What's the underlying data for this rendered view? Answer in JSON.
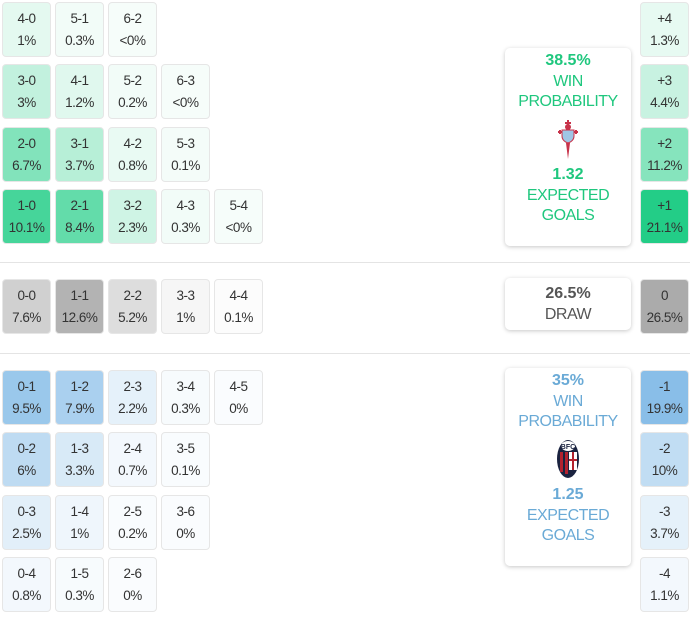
{
  "home": {
    "win_probability": "38.5%",
    "win_label_1": "WIN",
    "win_label_2": "PROBABILITY",
    "expected_goals": "1.32",
    "xg_label_1": "EXPECTED",
    "xg_label_2": "GOALS",
    "logo": "celta-vigo-crest-icon",
    "color": "#1fc77e"
  },
  "draw": {
    "probability": "26.5%",
    "label": "DRAW"
  },
  "away": {
    "win_probability": "35%",
    "win_label_1": "WIN",
    "win_label_2": "PROBABILITY",
    "expected_goals": "1.25",
    "xg_label_1": "EXPECTED",
    "xg_label_2": "GOALS",
    "logo": "bologna-crest-icon",
    "color": "#6aaad6"
  },
  "home_scores": [
    [
      {
        "s": "4-0",
        "p": "1%"
      },
      {
        "s": "5-1",
        "p": "0.3%"
      },
      {
        "s": "6-2",
        "p": "<0%"
      }
    ],
    [
      {
        "s": "3-0",
        "p": "3%"
      },
      {
        "s": "4-1",
        "p": "1.2%"
      },
      {
        "s": "5-2",
        "p": "0.2%"
      },
      {
        "s": "6-3",
        "p": "<0%"
      }
    ],
    [
      {
        "s": "2-0",
        "p": "6.7%"
      },
      {
        "s": "3-1",
        "p": "3.7%"
      },
      {
        "s": "4-2",
        "p": "0.8%"
      },
      {
        "s": "5-3",
        "p": "0.1%"
      }
    ],
    [
      {
        "s": "1-0",
        "p": "10.1%"
      },
      {
        "s": "2-1",
        "p": "8.4%"
      },
      {
        "s": "3-2",
        "p": "2.3%"
      },
      {
        "s": "4-3",
        "p": "0.3%"
      },
      {
        "s": "5-4",
        "p": "<0%"
      }
    ]
  ],
  "draw_scores": [
    {
      "s": "0-0",
      "p": "7.6%"
    },
    {
      "s": "1-1",
      "p": "12.6%"
    },
    {
      "s": "2-2",
      "p": "5.2%"
    },
    {
      "s": "3-3",
      "p": "1%"
    },
    {
      "s": "4-4",
      "p": "0.1%"
    }
  ],
  "away_scores": [
    [
      {
        "s": "0-1",
        "p": "9.5%"
      },
      {
        "s": "1-2",
        "p": "7.9%"
      },
      {
        "s": "2-3",
        "p": "2.2%"
      },
      {
        "s": "3-4",
        "p": "0.3%"
      },
      {
        "s": "4-5",
        "p": "0%"
      }
    ],
    [
      {
        "s": "0-2",
        "p": "6%"
      },
      {
        "s": "1-3",
        "p": "3.3%"
      },
      {
        "s": "2-4",
        "p": "0.7%"
      },
      {
        "s": "3-5",
        "p": "0.1%"
      }
    ],
    [
      {
        "s": "0-3",
        "p": "2.5%"
      },
      {
        "s": "1-4",
        "p": "1%"
      },
      {
        "s": "2-5",
        "p": "0.2%"
      },
      {
        "s": "3-6",
        "p": "0%"
      }
    ],
    [
      {
        "s": "0-4",
        "p": "0.8%"
      },
      {
        "s": "1-5",
        "p": "0.3%"
      },
      {
        "s": "2-6",
        "p": "0%"
      }
    ]
  ],
  "margins": {
    "home": [
      {
        "m": "+4",
        "p": "1.3%"
      },
      {
        "m": "+3",
        "p": "4.4%"
      },
      {
        "m": "+2",
        "p": "11.2%"
      },
      {
        "m": "+1",
        "p": "21.1%"
      }
    ],
    "draw": {
      "m": "0",
      "p": "26.5%"
    },
    "away": [
      {
        "m": "-1",
        "p": "19.9%"
      },
      {
        "m": "-2",
        "p": "10%"
      },
      {
        "m": "-3",
        "p": "3.7%"
      },
      {
        "m": "-4",
        "p": "1.1%"
      }
    ]
  },
  "chart_data": {
    "type": "heatmap",
    "title": "Correct score probabilities",
    "home_win": {
      "win_probability": 38.5,
      "expected_goals": 1.32,
      "scores": {
        "1-0": 10.1,
        "2-0": 6.7,
        "3-0": 3.0,
        "4-0": 1.0,
        "2-1": 8.4,
        "3-1": 3.7,
        "4-1": 1.2,
        "5-1": 0.3,
        "3-2": 2.3,
        "4-2": 0.8,
        "5-2": 0.2,
        "6-2": 0,
        "4-3": 0.3,
        "5-3": 0.1,
        "6-3": 0,
        "5-4": 0
      },
      "margins": {
        "+1": 21.1,
        "+2": 11.2,
        "+3": 4.4,
        "+4": 1.3
      }
    },
    "draw": {
      "probability": 26.5,
      "scores": {
        "0-0": 7.6,
        "1-1": 12.6,
        "2-2": 5.2,
        "3-3": 1.0,
        "4-4": 0.1
      },
      "margins": {
        "0": 26.5
      }
    },
    "away_win": {
      "win_probability": 35.0,
      "expected_goals": 1.25,
      "scores": {
        "0-1": 9.5,
        "0-2": 6.0,
        "0-3": 2.5,
        "0-4": 0.8,
        "1-2": 7.9,
        "1-3": 3.3,
        "1-4": 1.0,
        "1-5": 0.3,
        "2-3": 2.2,
        "2-4": 0.7,
        "2-5": 0.2,
        "2-6": 0,
        "3-4": 0.3,
        "3-5": 0.1,
        "3-6": 0,
        "4-5": 0
      },
      "margins": {
        "-1": 19.9,
        "-2": 10.0,
        "-3": 3.7,
        "-4": 1.1
      }
    }
  }
}
